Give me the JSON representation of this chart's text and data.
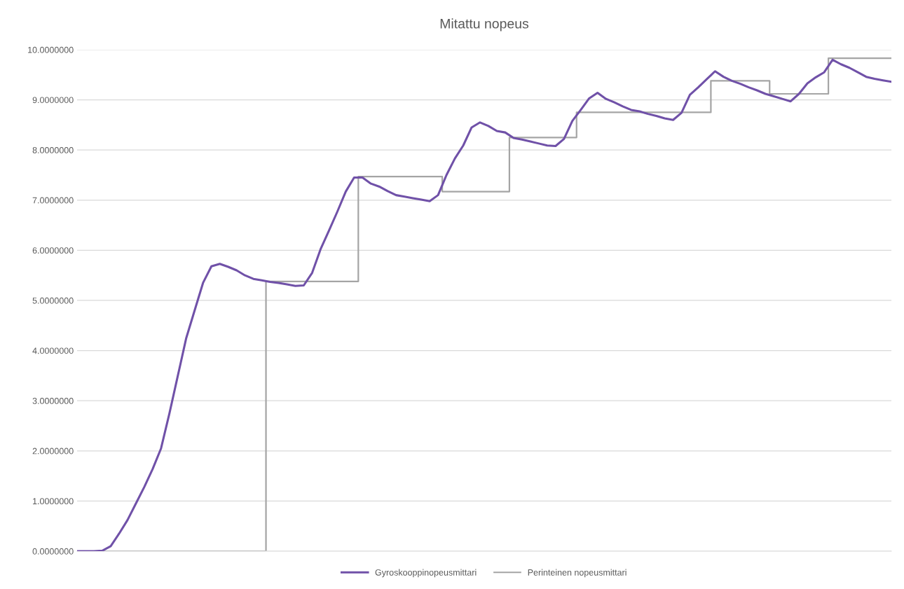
{
  "chart_data": {
    "type": "line",
    "title": "Mitattu nopeus",
    "categories": [
      null,
      null,
      null,
      null,
      null,
      null,
      null,
      null,
      null,
      null,
      null,
      null,
      null,
      null,
      null,
      null,
      null,
      null,
      null,
      null,
      null,
      null,
      null,
      null,
      null,
      null,
      null,
      null,
      null,
      null,
      null,
      null,
      null,
      null,
      null,
      null,
      null,
      null,
      null,
      null,
      null,
      null,
      null,
      null,
      null,
      null,
      null,
      null,
      null,
      null,
      null,
      null,
      null,
      null,
      null,
      null,
      null,
      null,
      null,
      null,
      null,
      null,
      null,
      null,
      null,
      null,
      null,
      null,
      null,
      null,
      null,
      null,
      null,
      null,
      null,
      null,
      null,
      null,
      null,
      null,
      null,
      null,
      null,
      null,
      null,
      null,
      null,
      null,
      null,
      null,
      null,
      null,
      null,
      null,
      null,
      null,
      null,
      null
    ],
    "series": [
      {
        "name": "Gyroskooppinopeusmittari",
        "color": "#7051a8",
        "values": [
          0,
          0,
          0,
          0.01,
          0.1,
          0.35,
          0.62,
          0.95,
          1.28,
          1.64,
          2.05,
          2.75,
          3.5,
          4.25,
          4.8,
          5.35,
          5.68,
          5.73,
          5.67,
          5.6,
          5.5,
          5.43,
          5.4,
          5.37,
          5.35,
          5.32,
          5.29,
          5.3,
          5.55,
          6.02,
          6.39,
          6.77,
          7.17,
          7.45,
          7.45,
          7.33,
          7.27,
          7.18,
          7.1,
          7.07,
          7.04,
          7.01,
          6.98,
          7.1,
          7.5,
          7.83,
          8.09,
          8.45,
          8.55,
          8.48,
          8.38,
          8.35,
          8.24,
          8.21,
          8.17,
          8.13,
          8.09,
          8.08,
          8.22,
          8.58,
          8.8,
          9.03,
          9.14,
          9.02,
          8.95,
          8.87,
          8.8,
          8.77,
          8.72,
          8.68,
          8.63,
          8.6,
          8.74,
          9.1,
          9.25,
          9.41,
          9.57,
          9.46,
          9.38,
          9.32,
          9.25,
          9.19,
          9.12,
          9.07,
          9.02,
          8.97,
          9.12,
          9.33,
          9.45,
          9.55,
          9.8,
          9.71,
          9.64,
          9.55,
          9.46,
          9.42,
          9.39,
          9.36
        ]
      },
      {
        "name": "Perinteinen nopeusmittari",
        "color": "#a5a5a5",
        "type": "step",
        "values": [
          0,
          0,
          0,
          0,
          0,
          0,
          0,
          0,
          0,
          0,
          0,
          0,
          0,
          0,
          0,
          0,
          0,
          0,
          0,
          0,
          0,
          0,
          0,
          5.38,
          5.38,
          5.38,
          5.38,
          5.38,
          5.38,
          5.38,
          5.38,
          5.38,
          5.38,
          5.38,
          7.47,
          7.47,
          7.47,
          7.47,
          7.47,
          7.47,
          7.47,
          7.47,
          7.47,
          7.47,
          7.17,
          7.17,
          7.17,
          7.17,
          7.17,
          7.17,
          7.17,
          7.17,
          8.25,
          8.25,
          8.25,
          8.25,
          8.25,
          8.25,
          8.25,
          8.25,
          8.75,
          8.75,
          8.75,
          8.75,
          8.75,
          8.75,
          8.75,
          8.75,
          8.75,
          8.75,
          8.75,
          8.75,
          8.75,
          8.75,
          8.75,
          8.75,
          9.38,
          9.38,
          9.38,
          9.38,
          9.38,
          9.38,
          9.38,
          9.12,
          9.12,
          9.12,
          9.12,
          9.12,
          9.12,
          9.12,
          9.83,
          9.83,
          9.83,
          9.83,
          9.83,
          9.83,
          9.83,
          9.83
        ]
      }
    ],
    "ylim": [
      0,
      10
    ],
    "yticks": [
      {
        "value": 0,
        "label": "0.0000000"
      },
      {
        "value": 1,
        "label": "1.0000000"
      },
      {
        "value": 2,
        "label": "2.0000000"
      },
      {
        "value": 3,
        "label": "3.0000000"
      },
      {
        "value": 4,
        "label": "4.0000000"
      },
      {
        "value": 5,
        "label": "5.0000000"
      },
      {
        "value": 6,
        "label": "6.0000000"
      },
      {
        "value": 7,
        "label": "7.0000000"
      },
      {
        "value": 8,
        "label": "8.0000000"
      },
      {
        "value": 9,
        "label": "9.0000000"
      },
      {
        "value": 10,
        "label": "10.0000000"
      }
    ],
    "grid": "y",
    "legend": "bottom",
    "marker": "none",
    "line_style": "solid"
  }
}
